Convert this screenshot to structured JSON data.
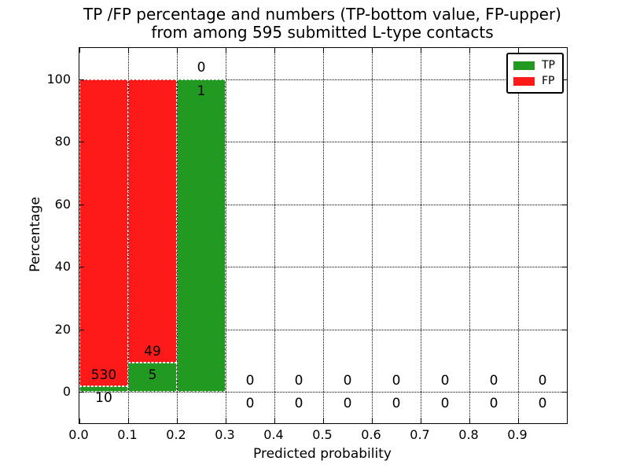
{
  "chart_data": {
    "type": "bar",
    "subtype": "stacked-percentage-histogram",
    "title_line1": "TP /FP percentage and numbers (TP-bottom value, FP-upper)",
    "title_line2": "from among 595 submitted L-type contacts",
    "xlabel": "Predicted probability",
    "ylabel": "Percentage",
    "total_submitted": 595,
    "xlim": [
      0.0,
      1.0
    ],
    "ylim": [
      -10,
      110
    ],
    "xticks": {
      "values": [
        0.0,
        0.1,
        0.2,
        0.3,
        0.4,
        0.5,
        0.6,
        0.7,
        0.8,
        0.9
      ],
      "labels": [
        "0.0",
        "0.1",
        "0.2",
        "0.3",
        "0.4",
        "0.5",
        "0.6",
        "0.7",
        "0.8",
        "0.9"
      ]
    },
    "yticks": {
      "values": [
        0,
        20,
        40,
        60,
        80,
        100
      ],
      "labels": [
        "0",
        "20",
        "40",
        "60",
        "80",
        "100"
      ]
    },
    "grid": {
      "style": "dotted",
      "color": "#000000"
    },
    "legend": {
      "position": "upper-right",
      "entries": [
        {
          "label": "TP",
          "color": "#229a22"
        },
        {
          "label": "FP",
          "color": "#ff1a1a"
        }
      ]
    },
    "bins": [
      {
        "range": [
          0.0,
          0.1
        ],
        "tp": 10,
        "fp": 530,
        "tp_pct": 1.85,
        "fp_pct": 98.15
      },
      {
        "range": [
          0.1,
          0.2
        ],
        "tp": 5,
        "fp": 49,
        "tp_pct": 9.26,
        "fp_pct": 90.74
      },
      {
        "range": [
          0.2,
          0.3
        ],
        "tp": 1,
        "fp": 0,
        "tp_pct": 100,
        "fp_pct": 0
      },
      {
        "range": [
          0.3,
          0.4
        ],
        "tp": 0,
        "fp": 0,
        "tp_pct": 0,
        "fp_pct": 0
      },
      {
        "range": [
          0.4,
          0.5
        ],
        "tp": 0,
        "fp": 0,
        "tp_pct": 0,
        "fp_pct": 0
      },
      {
        "range": [
          0.5,
          0.6
        ],
        "tp": 0,
        "fp": 0,
        "tp_pct": 0,
        "fp_pct": 0
      },
      {
        "range": [
          0.6,
          0.7
        ],
        "tp": 0,
        "fp": 0,
        "tp_pct": 0,
        "fp_pct": 0
      },
      {
        "range": [
          0.7,
          0.8
        ],
        "tp": 0,
        "fp": 0,
        "tp_pct": 0,
        "fp_pct": 0
      },
      {
        "range": [
          0.8,
          0.9
        ],
        "tp": 0,
        "fp": 0,
        "tp_pct": 0,
        "fp_pct": 0
      },
      {
        "range": [
          0.9,
          1.0
        ],
        "tp": 0,
        "fp": 0,
        "tp_pct": 0,
        "fp_pct": 0
      }
    ]
  }
}
